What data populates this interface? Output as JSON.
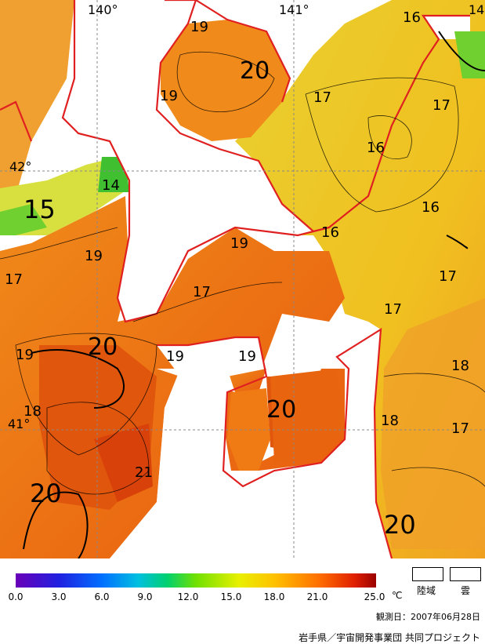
{
  "map": {
    "longitude_labels": [
      "140°",
      "141°",
      "14"
    ],
    "latitude_labels": [
      "42°",
      "41°"
    ],
    "contour_labels": [
      "19",
      "20",
      "19",
      "17",
      "17",
      "16",
      "16",
      "17",
      "16",
      "14",
      "15",
      "19",
      "17",
      "19",
      "17",
      "19",
      "20",
      "19",
      "19",
      "17",
      "18",
      "18",
      "20",
      "17",
      "18",
      "21",
      "20",
      "20",
      "16"
    ]
  },
  "legend": {
    "ticks": [
      "0.0",
      "3.0",
      "6.0",
      "9.0",
      "12.0",
      "15.0",
      "18.0",
      "21.0",
      "25.0"
    ],
    "unit": "℃",
    "land_label": "陸域",
    "cloud_label": "雲",
    "colors": {
      "land": "#ffffff",
      "cloud": "#ffffff",
      "coast": "#e02020"
    }
  },
  "footer": {
    "observation_date": "観測日：2007年06月28日",
    "credit": "岩手県／宇宙開発事業団  共同プロジェクト"
  }
}
